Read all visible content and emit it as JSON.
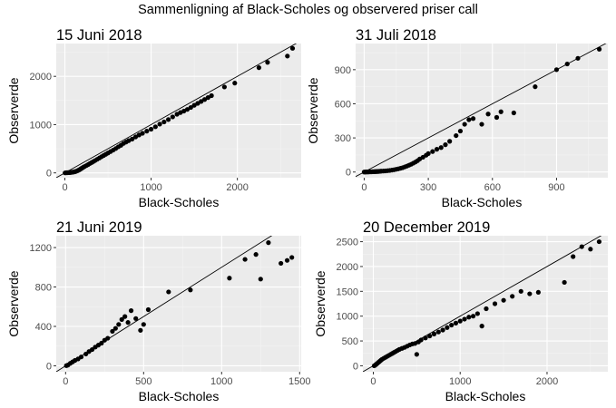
{
  "title": "Sammenligning af Black-Scholes og observered priser call",
  "chart_data": [
    {
      "type": "scatter",
      "title": "15 Juni 2018",
      "xlabel": "Black-Scholes",
      "ylabel": "Observerde",
      "xlim": [
        -100,
        2740
      ],
      "ylim": [
        -100,
        2680
      ],
      "xticks": [
        0,
        1000,
        2000
      ],
      "yticks": [
        0,
        1000,
        2000
      ],
      "reference_line": "y = x",
      "points": [
        [
          2,
          0
        ],
        [
          10,
          2
        ],
        [
          20,
          3
        ],
        [
          30,
          4
        ],
        [
          40,
          5
        ],
        [
          50,
          6
        ],
        [
          60,
          8
        ],
        [
          70,
          10
        ],
        [
          80,
          12
        ],
        [
          90,
          15
        ],
        [
          100,
          18
        ],
        [
          110,
          22
        ],
        [
          120,
          27
        ],
        [
          130,
          33
        ],
        [
          140,
          40
        ],
        [
          150,
          48
        ],
        [
          160,
          57
        ],
        [
          170,
          67
        ],
        [
          180,
          78
        ],
        [
          190,
          90
        ],
        [
          200,
          102
        ],
        [
          215,
          118
        ],
        [
          230,
          134
        ],
        [
          250,
          152
        ],
        [
          270,
          172
        ],
        [
          290,
          194
        ],
        [
          310,
          214
        ],
        [
          330,
          234
        ],
        [
          350,
          256
        ],
        [
          375,
          282
        ],
        [
          400,
          308
        ],
        [
          425,
          335
        ],
        [
          450,
          360
        ],
        [
          475,
          386
        ],
        [
          500,
          412
        ],
        [
          530,
          442
        ],
        [
          560,
          472
        ],
        [
          590,
          505
        ],
        [
          620,
          540
        ],
        [
          650,
          572
        ],
        [
          680,
          610
        ],
        [
          710,
          640
        ],
        [
          740,
          668
        ],
        [
          780,
          700
        ],
        [
          820,
          745
        ],
        [
          860,
          785
        ],
        [
          900,
          820
        ],
        [
          950,
          865
        ],
        [
          1000,
          905
        ],
        [
          1050,
          955
        ],
        [
          1100,
          1010
        ],
        [
          1150,
          1055
        ],
        [
          1200,
          1105
        ],
        [
          1250,
          1160
        ],
        [
          1300,
          1215
        ],
        [
          1340,
          1250
        ],
        [
          1380,
          1280
        ],
        [
          1420,
          1315
        ],
        [
          1460,
          1355
        ],
        [
          1500,
          1400
        ],
        [
          1540,
          1440
        ],
        [
          1580,
          1480
        ],
        [
          1620,
          1520
        ],
        [
          1660,
          1560
        ],
        [
          1700,
          1600
        ],
        [
          1850,
          1780
        ],
        [
          1970,
          1860
        ],
        [
          2250,
          2180
        ],
        [
          2350,
          2290
        ],
        [
          2580,
          2420
        ],
        [
          2640,
          2580
        ]
      ]
    },
    {
      "type": "scatter",
      "title": "31 Juli 2018",
      "xlabel": "Black-Scholes",
      "ylabel": "Observerde",
      "xlim": [
        -40,
        1140
      ],
      "ylim": [
        -50,
        1130
      ],
      "xticks": [
        0,
        300,
        600,
        900
      ],
      "yticks": [
        0,
        300,
        600,
        900
      ],
      "reference_line": "y = x",
      "points": [
        [
          0,
          0
        ],
        [
          5,
          0
        ],
        [
          10,
          1
        ],
        [
          15,
          1
        ],
        [
          20,
          1
        ],
        [
          25,
          2
        ],
        [
          30,
          2
        ],
        [
          35,
          2
        ],
        [
          40,
          3
        ],
        [
          45,
          3
        ],
        [
          50,
          4
        ],
        [
          55,
          4
        ],
        [
          60,
          5
        ],
        [
          65,
          5
        ],
        [
          70,
          6
        ],
        [
          75,
          7
        ],
        [
          80,
          8
        ],
        [
          90,
          9
        ],
        [
          100,
          10
        ],
        [
          110,
          12
        ],
        [
          120,
          14
        ],
        [
          130,
          17
        ],
        [
          140,
          20
        ],
        [
          150,
          24
        ],
        [
          160,
          28
        ],
        [
          170,
          33
        ],
        [
          180,
          38
        ],
        [
          190,
          45
        ],
        [
          200,
          52
        ],
        [
          210,
          60
        ],
        [
          220,
          68
        ],
        [
          230,
          78
        ],
        [
          240,
          88
        ],
        [
          250,
          100
        ],
        [
          260,
          115
        ],
        [
          275,
          130
        ],
        [
          290,
          148
        ],
        [
          300,
          162
        ],
        [
          320,
          180
        ],
        [
          340,
          200
        ],
        [
          360,
          215
        ],
        [
          380,
          240
        ],
        [
          400,
          270
        ],
        [
          430,
          320
        ],
        [
          450,
          360
        ],
        [
          470,
          420
        ],
        [
          490,
          460
        ],
        [
          510,
          470
        ],
        [
          550,
          420
        ],
        [
          580,
          510
        ],
        [
          620,
          480
        ],
        [
          640,
          530
        ],
        [
          700,
          520
        ],
        [
          800,
          750
        ],
        [
          900,
          900
        ],
        [
          950,
          950
        ],
        [
          1000,
          1000
        ],
        [
          1100,
          1080
        ]
      ]
    },
    {
      "type": "scatter",
      "title": "21 Juni 2019",
      "xlabel": "Black-Scholes",
      "ylabel": "Observerde",
      "xlim": [
        -60,
        1510
      ],
      "ylim": [
        -60,
        1320
      ],
      "xticks": [
        0,
        500,
        1000,
        1500
      ],
      "yticks": [
        0,
        400,
        800,
        1200
      ],
      "reference_line": "y = x",
      "points": [
        [
          5,
          2
        ],
        [
          15,
          8
        ],
        [
          30,
          25
        ],
        [
          45,
          40
        ],
        [
          60,
          55
        ],
        [
          80,
          70
        ],
        [
          100,
          90
        ],
        [
          130,
          120
        ],
        [
          150,
          145
        ],
        [
          170,
          165
        ],
        [
          190,
          190
        ],
        [
          210,
          210
        ],
        [
          230,
          230
        ],
        [
          250,
          260
        ],
        [
          270,
          280
        ],
        [
          300,
          350
        ],
        [
          320,
          380
        ],
        [
          340,
          420
        ],
        [
          360,
          470
        ],
        [
          380,
          500
        ],
        [
          400,
          440
        ],
        [
          420,
          560
        ],
        [
          450,
          480
        ],
        [
          480,
          360
        ],
        [
          500,
          420
        ],
        [
          530,
          570
        ],
        [
          660,
          750
        ],
        [
          800,
          770
        ],
        [
          1050,
          890
        ],
        [
          1150,
          1080
        ],
        [
          1220,
          1130
        ],
        [
          1250,
          880
        ],
        [
          1300,
          1250
        ],
        [
          1380,
          1040
        ],
        [
          1420,
          1070
        ],
        [
          1450,
          1100
        ]
      ]
    },
    {
      "type": "scatter",
      "title": "20 December 2019",
      "xlabel": "Black-Scholes",
      "ylabel": "Observerde",
      "xlim": [
        -120,
        2700
      ],
      "ylim": [
        -120,
        2620
      ],
      "xticks": [
        0,
        1000,
        2000
      ],
      "yticks": [
        0,
        500,
        1000,
        1500,
        2000,
        2500
      ],
      "reference_line": "y = x",
      "points": [
        [
          10,
          0
        ],
        [
          20,
          10
        ],
        [
          30,
          25
        ],
        [
          40,
          40
        ],
        [
          50,
          55
        ],
        [
          60,
          70
        ],
        [
          70,
          85
        ],
        [
          80,
          100
        ],
        [
          90,
          115
        ],
        [
          100,
          130
        ],
        [
          120,
          150
        ],
        [
          140,
          170
        ],
        [
          160,
          190
        ],
        [
          180,
          210
        ],
        [
          200,
          230
        ],
        [
          220,
          250
        ],
        [
          240,
          270
        ],
        [
          260,
          290
        ],
        [
          280,
          310
        ],
        [
          300,
          330
        ],
        [
          330,
          350
        ],
        [
          360,
          370
        ],
        [
          390,
          395
        ],
        [
          420,
          420
        ],
        [
          450,
          440
        ],
        [
          480,
          450
        ],
        [
          500,
          230
        ],
        [
          520,
          480
        ],
        [
          550,
          520
        ],
        [
          600,
          560
        ],
        [
          650,
          600
        ],
        [
          700,
          640
        ],
        [
          750,
          680
        ],
        [
          800,
          720
        ],
        [
          850,
          770
        ],
        [
          900,
          820
        ],
        [
          950,
          860
        ],
        [
          1000,
          900
        ],
        [
          1050,
          940
        ],
        [
          1100,
          980
        ],
        [
          1150,
          1000
        ],
        [
          1200,
          1050
        ],
        [
          1250,
          800
        ],
        [
          1300,
          1150
        ],
        [
          1400,
          1250
        ],
        [
          1500,
          1320
        ],
        [
          1600,
          1400
        ],
        [
          1700,
          1500
        ],
        [
          1800,
          1450
        ],
        [
          1900,
          1480
        ],
        [
          2200,
          1680
        ],
        [
          2300,
          2200
        ],
        [
          2400,
          2400
        ],
        [
          2500,
          2350
        ],
        [
          2600,
          2500
        ]
      ]
    }
  ]
}
